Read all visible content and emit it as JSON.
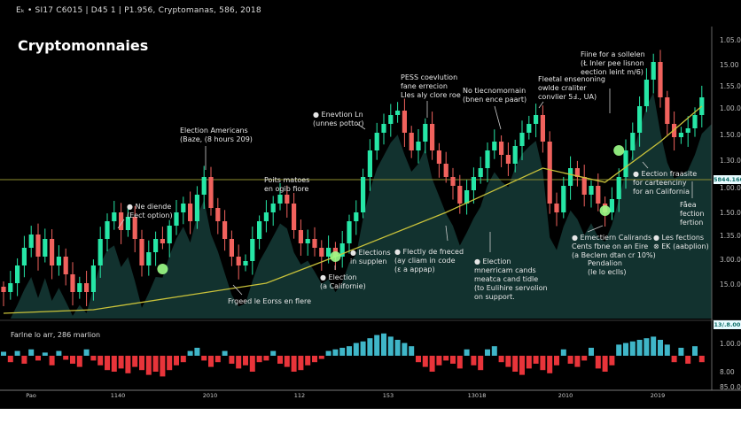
{
  "header": {
    "info_line": "Eₖ • SI17 C6015 | D45 1 | P1.956, Cryptomanas, 586, 2018",
    "title": "Cryptomonnaies"
  },
  "colors": {
    "up": "#26e6a6",
    "down": "#f0625d",
    "ma": "#c9c23a",
    "level": "#9a9a3a",
    "cloud": "#12322f",
    "marker": "#9dff8a",
    "osc_up": "#3fb6c8",
    "osc_down": "#e8343a"
  },
  "price_tag": "5844.160",
  "osc_tag": "13/.8.00",
  "osc_title": "Farlne lo arr, 286 marlion",
  "y_axis_labels": [
    "1.05.0",
    "15.00",
    "1.55.00",
    "1.00.00",
    "1.50.00",
    "1.30.00",
    "1.00.00",
    "1.50.00",
    "1.35.00",
    "3.00.00",
    "15.0.00"
  ],
  "osc_axis_labels": [
    "1.00.00",
    "8.00",
    "85.0.00"
  ],
  "x_axis_labels": [
    "Pao",
    "1140",
    "2010",
    "112",
    "153",
    "13018",
    "2010",
    "2019"
  ],
  "annotations": [
    {
      "id": "election-americans",
      "lines": [
        "Election Americans",
        "(Baze, (8 hours 209)"
      ]
    },
    {
      "id": "points-matoes",
      "lines": [
        "Poits matoes",
        "en ogib fiore"
      ]
    },
    {
      "id": "ne-diende",
      "lines": [
        "● Ne diende",
        "(Eect option)"
      ]
    },
    {
      "id": "enevtion",
      "lines": [
        "● Enevtion Ln",
        "(unnes pottor)"
      ]
    },
    {
      "id": "pess-coevlution",
      "lines": [
        "PESS coevlution",
        "fane errecion",
        "Lles aly clore roe"
      ]
    },
    {
      "id": "no-tiecnomornain",
      "lines": [
        "No tiecnomornain",
        "(bnen ence paart)"
      ]
    },
    {
      "id": "fleetal",
      "lines": [
        "Fleetal ensenoning",
        "owlde craliter",
        "convlier 5Ⅎ., UA)"
      ]
    },
    {
      "id": "fiine",
      "lines": [
        "Fiine for a sollelen",
        "(Ł Inler pee lisnon",
        "eection leint m/6)"
      ]
    },
    {
      "id": "elections-supplen",
      "lines": [
        "● Elections",
        "in supplen"
      ]
    },
    {
      "id": "election-californie",
      "lines": [
        "● Election",
        "(a Californie)"
      ]
    },
    {
      "id": "flectly",
      "lines": [
        "● Flectly de fneced",
        "(ay cliam in code",
        "(ε a appap)"
      ]
    },
    {
      "id": "election-support",
      "lines": [
        "● Election",
        "mnerricam cands",
        "meatca cand tidle",
        "(to Eulihire servolion",
        "on support."
      ]
    },
    {
      "id": "eection-fraasite",
      "lines": [
        "● Eection fraasite",
        "for carteenciny",
        "for an California"
      ]
    },
    {
      "id": "faea",
      "lines": [
        "Fåea",
        "fection",
        "fertion"
      ]
    },
    {
      "id": "emectiern",
      "lines": [
        "● Emectiern Calirands",
        "Cents fbne on an Eire",
        "(a Beclem dtan cr 10%)"
      ]
    },
    {
      "id": "pendalion",
      "lines": [
        "Pendalion",
        "(le lo eclls)"
      ]
    },
    {
      "id": "les-fections",
      "lines": [
        "● Les fections",
        "⊗ EK (aabplion)"
      ]
    },
    {
      "id": "frgeed",
      "lines": [
        "Frgeed le Eorss en flere"
      ]
    }
  ],
  "chart_data": {
    "type": "candlestick",
    "title": "Cryptomonnaies",
    "ylim": [
      0,
      160
    ],
    "grid": false,
    "close": [
      15,
      20,
      30,
      40,
      47.5,
      35,
      45,
      30,
      35,
      25,
      15,
      20,
      15,
      30,
      45,
      55,
      60,
      50,
      57.5,
      45,
      30,
      37.5,
      45,
      42.5,
      52.5,
      60,
      65,
      55,
      70,
      80,
      62.5,
      55,
      45,
      35,
      30,
      32.5,
      45,
      55,
      60,
      65,
      70,
      65,
      50,
      42.5,
      45,
      40,
      35,
      40,
      35,
      42.5,
      55,
      60,
      80,
      95,
      105,
      110,
      115,
      117.5,
      105,
      95,
      100,
      110,
      95,
      87.5,
      80,
      75,
      65,
      72.5,
      80,
      85,
      95,
      100,
      92.5,
      87.5,
      97.5,
      105,
      110,
      115,
      100,
      65,
      60,
      75,
      85,
      80,
      70,
      75,
      65,
      60,
      67.5,
      80,
      95,
      105,
      120,
      135,
      145,
      125,
      110,
      102.5,
      105,
      107.5,
      115,
      125
    ],
    "first_open": 18,
    "moving_average": [
      {
        "i": 0,
        "v": 3
      },
      {
        "i": 13,
        "v": 5
      },
      {
        "i": 38,
        "v": 20
      },
      {
        "i": 48,
        "v": 35
      },
      {
        "i": 64,
        "v": 60
      },
      {
        "i": 78,
        "v": 85
      },
      {
        "i": 87,
        "v": 77
      },
      {
        "i": 95,
        "v": 100
      },
      {
        "i": 101,
        "v": 120
      }
    ],
    "level": 78.5,
    "markers": [
      {
        "i": 23,
        "v": 28
      },
      {
        "i": 48,
        "v": 35
      },
      {
        "i": 87,
        "v": 61
      },
      {
        "i": 89,
        "v": 95
      }
    ],
    "oscillator": [
      5,
      -8,
      6,
      -10,
      8,
      -6,
      4,
      -12,
      6,
      -5,
      -10,
      -14,
      8,
      -6,
      -12,
      -18,
      -20,
      -16,
      -22,
      -14,
      -18,
      -24,
      -20,
      -26,
      -18,
      -12,
      -8,
      6,
      10,
      -6,
      -14,
      -8,
      6,
      -10,
      -16,
      -12,
      -20,
      -8,
      -6,
      6,
      -10,
      -14,
      -20,
      -18,
      -12,
      -8,
      -4,
      6,
      8,
      10,
      12,
      16,
      18,
      22,
      26,
      28,
      24,
      20,
      16,
      12,
      -8,
      -14,
      -20,
      -12,
      -6,
      -10,
      -16,
      8,
      -12,
      -18,
      8,
      12,
      -8,
      -14,
      -20,
      -24,
      -16,
      -10,
      -18,
      -22,
      -12,
      8,
      -10,
      -14,
      -6,
      10,
      -16,
      -20,
      -12,
      14,
      16,
      18,
      20,
      22,
      24,
      20,
      14,
      -8,
      10,
      -10,
      12,
      -8
    ]
  }
}
